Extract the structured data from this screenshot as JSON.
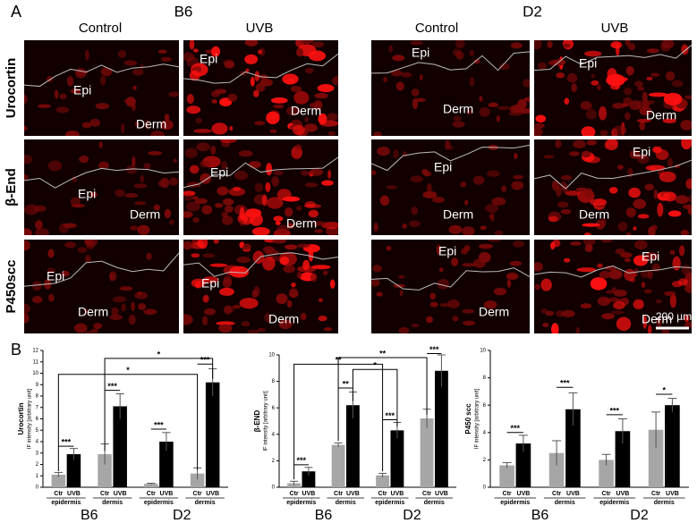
{
  "panel_a": {
    "letter": "A",
    "strains": [
      "B6",
      "D2"
    ],
    "columns": [
      "Control",
      "UVB",
      "Control",
      "UVB"
    ],
    "rows": [
      "Urocortin",
      "β-End",
      "P450scc"
    ],
    "images": [
      [
        "Epi",
        "Derm"
      ],
      [
        "Epi",
        "Derm"
      ],
      [
        "Epi",
        "Derm"
      ],
      [
        "Epi",
        "Derm"
      ],
      [
        "Epi",
        "Derm"
      ],
      [
        "Epi",
        "Derm"
      ],
      [
        "Epi",
        "Derm"
      ],
      [
        "Epi",
        "Derm"
      ],
      [
        "Epi",
        "Derm"
      ],
      [
        "Epi",
        "Derm"
      ],
      [
        "Epi",
        "Derm"
      ],
      [
        "Epi",
        "Derm"
      ]
    ],
    "scale_bar": "200 µm"
  },
  "panel_b": {
    "letter": "B"
  },
  "chart_data": [
    {
      "type": "bar",
      "ylabel": "Urocortin",
      "ylabel2": "IF intensity [arbitrary unit]",
      "categories": [
        "epidermis",
        "dermis",
        "epidermis",
        "dermis"
      ],
      "groups": [
        "B6",
        "D2"
      ],
      "series": [
        {
          "name": "Ctr",
          "color": "#a6a6a6",
          "values": [
            1.1,
            2.9,
            0.3,
            1.2
          ],
          "errors": [
            0.2,
            0.9,
            0.05,
            0.5
          ]
        },
        {
          "name": "UVB",
          "color": "#000000",
          "values": [
            2.9,
            7.1,
            4.0,
            9.2
          ],
          "errors": [
            0.5,
            1.1,
            0.8,
            1.2
          ]
        }
      ],
      "ylim": [
        0,
        12
      ],
      "yticks": [
        0,
        1,
        2,
        3,
        4,
        5,
        6,
        7,
        8,
        9,
        10,
        11,
        12
      ],
      "significance": [
        "***",
        "***",
        "***",
        "***",
        "*",
        "*"
      ]
    },
    {
      "type": "bar",
      "ylabel": "β-END",
      "ylabel2": "IF intensity [arbitrary unit]",
      "categories": [
        "epidermis",
        "dermis",
        "epidermis",
        "dermis"
      ],
      "groups": [
        "B6",
        "D2"
      ],
      "series": [
        {
          "name": "Ctr",
          "color": "#a6a6a6",
          "values": [
            0.3,
            3.2,
            0.9,
            5.2
          ],
          "errors": [
            0.15,
            0.15,
            0.15,
            0.7
          ]
        },
        {
          "name": "UVB",
          "color": "#000000",
          "values": [
            1.2,
            6.2,
            4.3,
            8.8
          ],
          "errors": [
            0.3,
            1.0,
            0.6,
            1.2
          ]
        }
      ],
      "ylim": [
        0,
        10
      ],
      "yticks": [
        0,
        2,
        4,
        6,
        8,
        10
      ],
      "significance": [
        "***",
        "**",
        "***",
        "***",
        "**",
        "**",
        "*"
      ]
    },
    {
      "type": "bar",
      "ylabel": "P450 scc",
      "ylabel2": "IF intensity [arbitrary unit]",
      "categories": [
        "epidermis",
        "dermis",
        "epidermis",
        "dermis"
      ],
      "groups": [
        "B6",
        "D2"
      ],
      "series": [
        {
          "name": "Ctr",
          "color": "#a6a6a6",
          "values": [
            1.6,
            2.5,
            2.0,
            4.2
          ],
          "errors": [
            0.2,
            0.9,
            0.4,
            1.3
          ]
        },
        {
          "name": "UVB",
          "color": "#000000",
          "values": [
            3.2,
            5.7,
            4.1,
            6.0
          ],
          "errors": [
            0.6,
            1.2,
            0.9,
            0.5
          ]
        }
      ],
      "ylim": [
        0,
        10
      ],
      "yticks": [
        0,
        2,
        4,
        6,
        8,
        10
      ],
      "significance": [
        "***",
        "***",
        "***",
        "*"
      ]
    }
  ]
}
